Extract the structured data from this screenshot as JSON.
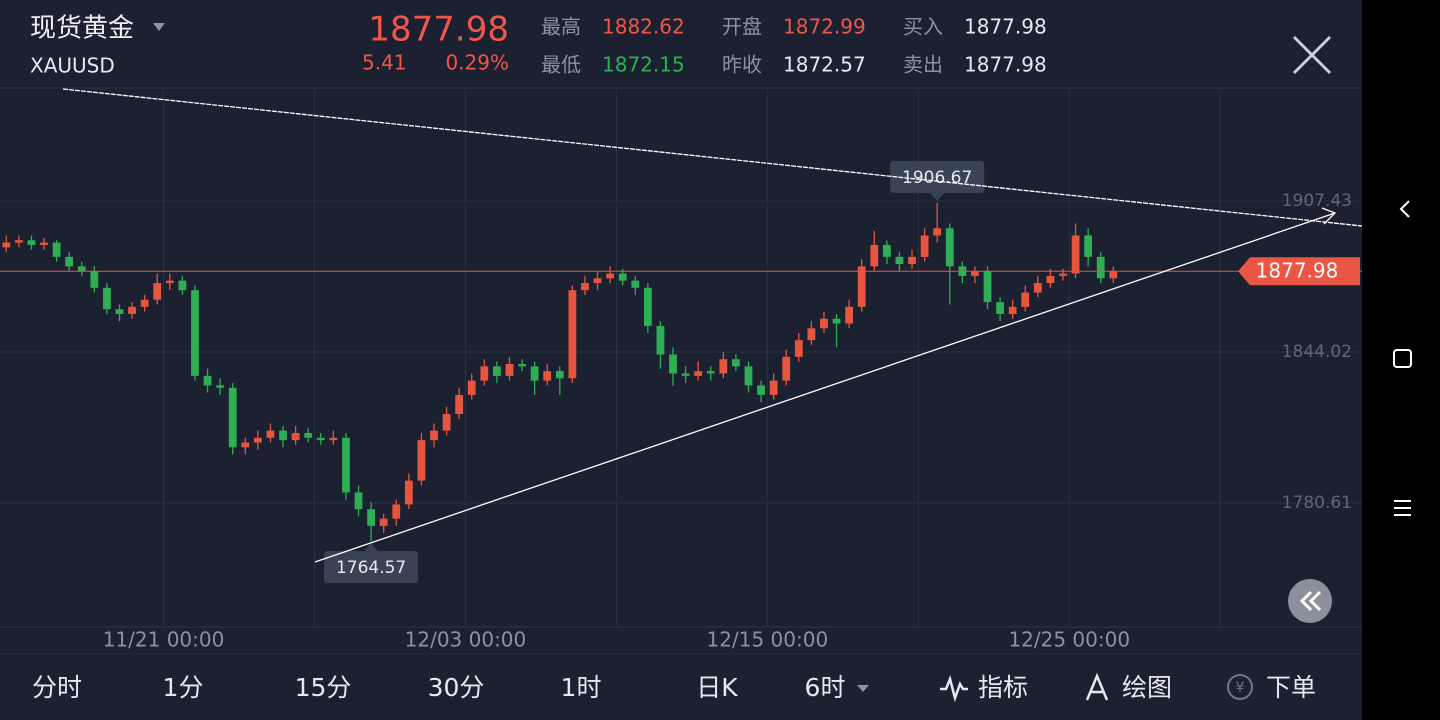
{
  "header": {
    "title": "现货黄金",
    "symbol": "XAUUSD",
    "price": "1877.98",
    "change": "5.41",
    "change_pct": "0.29%",
    "stats": [
      {
        "label": "最高",
        "value": "1882.62"
      },
      {
        "label": "最低",
        "value": "1872.15"
      },
      {
        "label": "开盘",
        "value": "1872.99"
      },
      {
        "label": "昨收",
        "value": "1872.57"
      },
      {
        "label": "买入",
        "value": "1877.98"
      },
      {
        "label": "卖出",
        "value": "1877.98"
      }
    ]
  },
  "chart_data": {
    "type": "candlestick",
    "up_color": "#e8553f",
    "down_color": "#2eae55",
    "xlim": [
      0,
      108.27
    ],
    "ylim": [
      1728.5,
      1954.1
    ],
    "yticks": [
      1780.61,
      1844.02,
      1907.43
    ],
    "xticks": [
      {
        "value": 13,
        "label": "11/21 00:00"
      },
      {
        "value": 37,
        "label": "12/03 00:00"
      },
      {
        "value": 61,
        "label": "12/15 00:00"
      },
      {
        "value": 85,
        "label": "12/25 00:00"
      }
    ],
    "xgrid": [
      25,
      49,
      73,
      97
    ],
    "last_price": 1877.98,
    "candles": [
      [
        1888,
        1893,
        1886,
        1890
      ],
      [
        1890,
        1893,
        1888,
        1891
      ],
      [
        1891,
        1893,
        1887,
        1889
      ],
      [
        1889,
        1892,
        1887,
        1890
      ],
      [
        1890,
        1891,
        1882,
        1884
      ],
      [
        1884,
        1886,
        1878,
        1880
      ],
      [
        1880,
        1882,
        1876,
        1878
      ],
      [
        1878,
        1880,
        1869,
        1871
      ],
      [
        1871,
        1873,
        1860,
        1862
      ],
      [
        1862,
        1864,
        1857,
        1860
      ],
      [
        1860,
        1865,
        1858,
        1863
      ],
      [
        1863,
        1868,
        1861,
        1866
      ],
      [
        1866,
        1877,
        1864,
        1873
      ],
      [
        1873,
        1877,
        1870,
        1874
      ],
      [
        1874,
        1876,
        1868,
        1870
      ],
      [
        1870,
        1872,
        1832,
        1834
      ],
      [
        1834,
        1837,
        1827,
        1830
      ],
      [
        1830,
        1833,
        1826,
        1829
      ],
      [
        1829,
        1831,
        1801,
        1804
      ],
      [
        1804,
        1808,
        1801,
        1806
      ],
      [
        1806,
        1811,
        1803,
        1808
      ],
      [
        1808,
        1814,
        1806,
        1811
      ],
      [
        1811,
        1813,
        1804,
        1807
      ],
      [
        1807,
        1813,
        1805,
        1810
      ],
      [
        1810,
        1812,
        1806,
        1808
      ],
      [
        1808,
        1810,
        1805,
        1807
      ],
      [
        1807,
        1811,
        1805,
        1808
      ],
      [
        1808,
        1810,
        1782,
        1785
      ],
      [
        1785,
        1788,
        1775,
        1778
      ],
      [
        1778,
        1781,
        1764.57,
        1771
      ],
      [
        1771,
        1776,
        1768,
        1774
      ],
      [
        1774,
        1782,
        1771,
        1780
      ],
      [
        1780,
        1793,
        1778,
        1790
      ],
      [
        1790,
        1810,
        1788,
        1807
      ],
      [
        1807,
        1814,
        1804,
        1811
      ],
      [
        1811,
        1821,
        1809,
        1818
      ],
      [
        1818,
        1829,
        1816,
        1826
      ],
      [
        1826,
        1835,
        1824,
        1832
      ],
      [
        1832,
        1841,
        1830,
        1838
      ],
      [
        1838,
        1840,
        1831,
        1834
      ],
      [
        1834,
        1842,
        1832,
        1839
      ],
      [
        1839,
        1841,
        1836,
        1838
      ],
      [
        1838,
        1840,
        1826,
        1832
      ],
      [
        1832,
        1839,
        1830,
        1836
      ],
      [
        1836,
        1838,
        1826,
        1833
      ],
      [
        1833,
        1872,
        1831,
        1870
      ],
      [
        1870,
        1876,
        1868,
        1873
      ],
      [
        1873,
        1878,
        1870,
        1875
      ],
      [
        1875,
        1880,
        1873,
        1877
      ],
      [
        1877,
        1879,
        1872,
        1874
      ],
      [
        1874,
        1876,
        1868,
        1871
      ],
      [
        1871,
        1873,
        1852,
        1855
      ],
      [
        1855,
        1857,
        1837,
        1843
      ],
      [
        1843,
        1846,
        1830,
        1835
      ],
      [
        1835,
        1838,
        1831,
        1834
      ],
      [
        1834,
        1840,
        1832,
        1836
      ],
      [
        1836,
        1838,
        1832,
        1835
      ],
      [
        1835,
        1844,
        1833,
        1841
      ],
      [
        1841,
        1843,
        1836,
        1838
      ],
      [
        1838,
        1840,
        1827,
        1830
      ],
      [
        1830,
        1832,
        1823,
        1826
      ],
      [
        1826,
        1835,
        1824,
        1832
      ],
      [
        1832,
        1845,
        1830,
        1842
      ],
      [
        1842,
        1852,
        1840,
        1849
      ],
      [
        1849,
        1857,
        1847,
        1854
      ],
      [
        1854,
        1861,
        1852,
        1858
      ],
      [
        1858,
        1860,
        1846,
        1856
      ],
      [
        1856,
        1866,
        1854,
        1863
      ],
      [
        1863,
        1883,
        1861,
        1880
      ],
      [
        1880,
        1895,
        1878,
        1889
      ],
      [
        1889,
        1891,
        1881,
        1884
      ],
      [
        1884,
        1886,
        1878,
        1881
      ],
      [
        1881,
        1887,
        1879,
        1884
      ],
      [
        1884,
        1896,
        1882,
        1893
      ],
      [
        1893,
        1906.67,
        1890,
        1896
      ],
      [
        1896,
        1898,
        1864,
        1880
      ],
      [
        1880,
        1882,
        1873,
        1876
      ],
      [
        1876,
        1880,
        1873,
        1878
      ],
      [
        1878,
        1880,
        1862,
        1865
      ],
      [
        1865,
        1867,
        1857,
        1860
      ],
      [
        1860,
        1866,
        1858,
        1863
      ],
      [
        1863,
        1872,
        1861,
        1869
      ],
      [
        1869,
        1876,
        1867,
        1873
      ],
      [
        1873,
        1879,
        1871,
        1876
      ],
      [
        1876,
        1879,
        1874,
        1877
      ],
      [
        1877,
        1898,
        1875,
        1893
      ],
      [
        1893,
        1896,
        1880,
        1884
      ],
      [
        1884,
        1886,
        1873,
        1875
      ],
      [
        1875,
        1880,
        1873,
        1877.98
      ]
    ],
    "high_label_candle": 74,
    "low_label_candle": 29
  },
  "tabs": [
    "分时",
    "1分",
    "15分",
    "30分",
    "1时",
    "日K",
    "6时",
    "指标",
    "绘图",
    "下单"
  ],
  "active_tab": 6
}
